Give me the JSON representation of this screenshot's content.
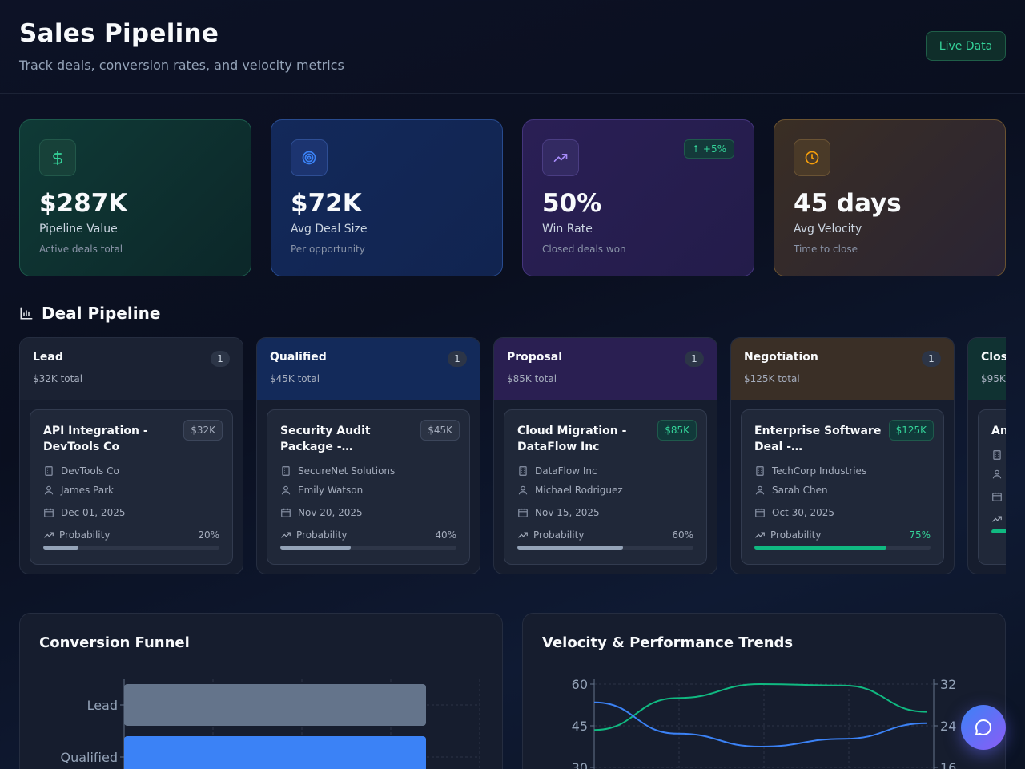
{
  "header": {
    "title": "Sales Pipeline",
    "subtitle": "Track deals, conversion rates, and velocity metrics",
    "live_label": "Live Data"
  },
  "kpis": [
    {
      "value": "$287K",
      "label": "Pipeline Value",
      "sub": "Active deals total",
      "icon": "dollar-icon",
      "color": "#34d399"
    },
    {
      "value": "$72K",
      "label": "Avg Deal Size",
      "sub": "Per opportunity",
      "icon": "target-icon",
      "color": "#3b82f6"
    },
    {
      "value": "50%",
      "label": "Win Rate",
      "sub": "Closed deals won",
      "icon": "trending-up-icon",
      "color": "#a78bfa",
      "badge": "↑ +5%"
    },
    {
      "value": "45 days",
      "label": "Avg Velocity",
      "sub": "Time to close",
      "icon": "clock-icon",
      "color": "#f59e0b"
    }
  ],
  "pipeline": {
    "title": "Deal Pipeline",
    "stages": [
      {
        "name": "Lead",
        "total": "$32K total",
        "count": "1",
        "deal": {
          "title": "API Integration - DevTools Co",
          "amount": "$32K",
          "company": "DevTools Co",
          "owner": "James Park",
          "date": "Dec 01, 2025",
          "prob_label": "Probability",
          "prob": "20%",
          "prob_value": 0.2
        }
      },
      {
        "name": "Qualified",
        "total": "$45K total",
        "count": "1",
        "deal": {
          "title": "Security Audit Package -…",
          "amount": "$45K",
          "company": "SecureNet Solutions",
          "owner": "Emily Watson",
          "date": "Nov 20, 2025",
          "prob_label": "Probability",
          "prob": "40%",
          "prob_value": 0.4
        }
      },
      {
        "name": "Proposal",
        "total": "$85K total",
        "count": "1",
        "deal": {
          "title": "Cloud Migration - DataFlow Inc",
          "amount": "$85K",
          "company": "DataFlow Inc",
          "owner": "Michael Rodriguez",
          "date": "Nov 15, 2025",
          "prob_label": "Probability",
          "prob": "60%",
          "prob_value": 0.6
        }
      },
      {
        "name": "Negotiation",
        "total": "$125K total",
        "count": "1",
        "deal": {
          "title": "Enterprise Software Deal -…",
          "amount": "$125K",
          "company": "TechCorp Industries",
          "owner": "Sarah Chen",
          "date": "Oct 30, 2025",
          "prob_label": "Probability",
          "prob": "75%",
          "prob_value": 0.75
        }
      },
      {
        "name": "Clos",
        "total": "$95K",
        "count": "",
        "deal": {
          "title": "An - I",
          "amount": "",
          "company": "",
          "owner": "",
          "date": "",
          "prob_label": "",
          "prob": "",
          "prob_value": 0.9
        }
      }
    ]
  },
  "funnel": {
    "title": "Conversion Funnel",
    "chart_data": {
      "type": "bar",
      "orientation": "horizontal",
      "categories": [
        "Lead",
        "Qualified"
      ],
      "values": [
        100,
        100
      ],
      "colors": [
        "#64748b",
        "#3b82f6"
      ],
      "grid": true
    }
  },
  "trends": {
    "title": "Velocity & Performance Trends",
    "chart_data": {
      "type": "line",
      "x": [
        0,
        1,
        2,
        3,
        4
      ],
      "series": [
        {
          "values": [
            43.5,
            55,
            60,
            59.5,
            50
          ],
          "color": "#10b981",
          "axis": "left"
        },
        {
          "values": [
            28.5,
            22.5,
            20,
            21.5,
            24.5
          ],
          "color": "#3b82f6",
          "axis": "right"
        }
      ],
      "y_left": {
        "ticks": [
          "60",
          "45",
          "30"
        ],
        "min": 30,
        "max": 60
      },
      "y_right": {
        "ticks": [
          "32",
          "24",
          "16"
        ],
        "min": 16,
        "max": 32
      }
    }
  }
}
